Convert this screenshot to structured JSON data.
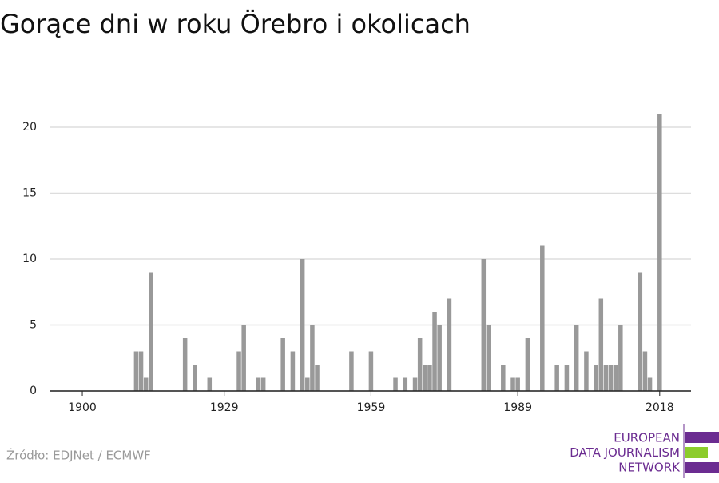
{
  "chart_data": {
    "type": "bar",
    "title": "Gorące dni w roku Örebro i okolicach",
    "x": [
      1911,
      1912,
      1913,
      1914,
      1921,
      1923,
      1926,
      1932,
      1933,
      1936,
      1937,
      1941,
      1943,
      1945,
      1946,
      1947,
      1948,
      1955,
      1959,
      1964,
      1966,
      1968,
      1969,
      1970,
      1971,
      1972,
      1973,
      1975,
      1982,
      1983,
      1986,
      1988,
      1989,
      1991,
      1994,
      1997,
      1999,
      2001,
      2003,
      2005,
      2006,
      2007,
      2008,
      2009,
      2010,
      2014,
      2015,
      2016,
      2018
    ],
    "values": [
      3,
      3,
      1,
      9,
      4,
      2,
      1,
      3,
      5,
      1,
      1,
      4,
      3,
      10,
      1,
      5,
      2,
      3,
      3,
      1,
      1,
      1,
      4,
      2,
      2,
      6,
      5,
      7,
      10,
      5,
      2,
      1,
      1,
      4,
      11,
      2,
      2,
      5,
      3,
      2,
      7,
      2,
      2,
      2,
      5,
      9,
      3,
      1,
      21
    ],
    "color": "#999999",
    "xlim": [
      1893.3,
      2024.4
    ],
    "xticks": [
      1900,
      1929,
      1959,
      1989,
      2018
    ],
    "ylim": [
      0,
      22
    ],
    "yticks": [
      0,
      5,
      10,
      15,
      20
    ],
    "grid": true,
    "source": "Źródło: EDJNet / ECMWF",
    "logo": [
      "EUROPEAN",
      "DATA JOURNALISM",
      "NETWORK"
    ]
  }
}
